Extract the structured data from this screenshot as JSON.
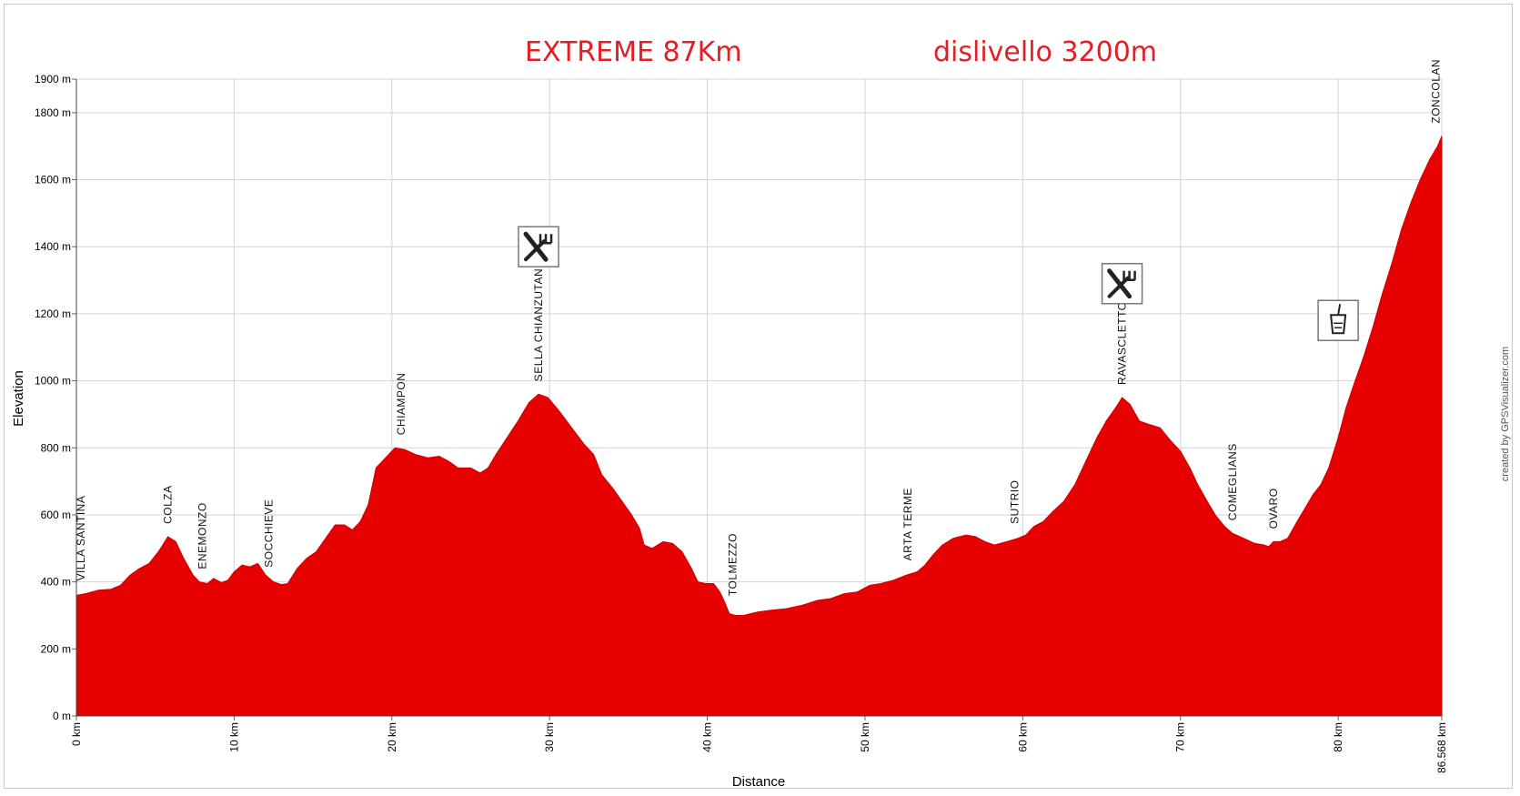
{
  "header": {
    "title_left": "EXTREME 87Km",
    "title_right": "dislivello 3200m"
  },
  "chart_data": {
    "type": "area",
    "title": "EXTREME 87Km",
    "subtitle": "dislivello 3200m",
    "xlabel": "Distance",
    "ylabel": "Elevation",
    "credit": "created by GPSVisualizer.com",
    "fill_color": "#e60000",
    "grid": true,
    "xlim": [
      0,
      86.568
    ],
    "ylim": [
      0,
      1900
    ],
    "x_ticks": [
      {
        "value": 0,
        "label": "0 km"
      },
      {
        "value": 10,
        "label": "10 km"
      },
      {
        "value": 20,
        "label": "20 km"
      },
      {
        "value": 30,
        "label": "30 km"
      },
      {
        "value": 40,
        "label": "40 km"
      },
      {
        "value": 50,
        "label": "50 km"
      },
      {
        "value": 60,
        "label": "60 km"
      },
      {
        "value": 70,
        "label": "70 km"
      },
      {
        "value": 80,
        "label": "80 km"
      },
      {
        "value": 86.568,
        "label": "86.568 km"
      }
    ],
    "y_ticks": [
      {
        "value": 0,
        "label": "0 m"
      },
      {
        "value": 200,
        "label": "200 m"
      },
      {
        "value": 400,
        "label": "400 m"
      },
      {
        "value": 600,
        "label": "600 m"
      },
      {
        "value": 800,
        "label": "800 m"
      },
      {
        "value": 1000,
        "label": "1000 m"
      },
      {
        "value": 1200,
        "label": "1200 m"
      },
      {
        "value": 1400,
        "label": "1400 m"
      },
      {
        "value": 1600,
        "label": "1600 m"
      },
      {
        "value": 1800,
        "label": "1800 m"
      },
      {
        "value": 1900,
        "label": "1900 m"
      }
    ],
    "points": [
      [
        0,
        360
      ],
      [
        0.6,
        365
      ],
      [
        1.4,
        375
      ],
      [
        2.2,
        378
      ],
      [
        2.8,
        390
      ],
      [
        3.4,
        420
      ],
      [
        4.0,
        440
      ],
      [
        4.6,
        455
      ],
      [
        5.2,
        490
      ],
      [
        5.8,
        535
      ],
      [
        6.3,
        520
      ],
      [
        6.8,
        470
      ],
      [
        7.4,
        420
      ],
      [
        7.8,
        400
      ],
      [
        8.3,
        395
      ],
      [
        8.7,
        410
      ],
      [
        9.2,
        398
      ],
      [
        9.6,
        405
      ],
      [
        10.0,
        430
      ],
      [
        10.5,
        450
      ],
      [
        11.0,
        445
      ],
      [
        11.5,
        455
      ],
      [
        12.0,
        420
      ],
      [
        12.5,
        400
      ],
      [
        13.0,
        392
      ],
      [
        13.4,
        395
      ],
      [
        14.0,
        440
      ],
      [
        14.6,
        470
      ],
      [
        15.2,
        490
      ],
      [
        15.8,
        530
      ],
      [
        16.4,
        570
      ],
      [
        17.0,
        570
      ],
      [
        17.5,
        555
      ],
      [
        18.0,
        580
      ],
      [
        18.5,
        630
      ],
      [
        19.0,
        740
      ],
      [
        19.6,
        770
      ],
      [
        20.2,
        800
      ],
      [
        20.8,
        795
      ],
      [
        21.5,
        780
      ],
      [
        22.3,
        770
      ],
      [
        23.0,
        775
      ],
      [
        23.6,
        760
      ],
      [
        24.2,
        740
      ],
      [
        25.0,
        740
      ],
      [
        25.6,
        725
      ],
      [
        26.1,
        740
      ],
      [
        26.6,
        780
      ],
      [
        27.3,
        830
      ],
      [
        28.0,
        880
      ],
      [
        28.7,
        935
      ],
      [
        29.3,
        960
      ],
      [
        29.9,
        950
      ],
      [
        30.6,
        910
      ],
      [
        31.4,
        860
      ],
      [
        32.2,
        810
      ],
      [
        32.8,
        780
      ],
      [
        33.3,
        720
      ],
      [
        34.0,
        680
      ],
      [
        34.6,
        640
      ],
      [
        35.2,
        600
      ],
      [
        35.7,
        560
      ],
      [
        36.0,
        510
      ],
      [
        36.5,
        500
      ],
      [
        37.2,
        520
      ],
      [
        37.8,
        515
      ],
      [
        38.4,
        490
      ],
      [
        39.0,
        440
      ],
      [
        39.4,
        400
      ],
      [
        39.9,
        395
      ],
      [
        40.4,
        395
      ],
      [
        40.8,
        370
      ],
      [
        41.1,
        340
      ],
      [
        41.4,
        305
      ],
      [
        41.8,
        300
      ],
      [
        42.3,
        300
      ],
      [
        43.2,
        310
      ],
      [
        44.0,
        315
      ],
      [
        45.0,
        320
      ],
      [
        46.0,
        330
      ],
      [
        47.0,
        345
      ],
      [
        47.8,
        350
      ],
      [
        48.7,
        365
      ],
      [
        49.5,
        370
      ],
      [
        50.3,
        390
      ],
      [
        51.0,
        395
      ],
      [
        51.8,
        405
      ],
      [
        52.6,
        420
      ],
      [
        53.3,
        430
      ],
      [
        53.8,
        450
      ],
      [
        54.3,
        480
      ],
      [
        54.9,
        510
      ],
      [
        55.6,
        530
      ],
      [
        56.4,
        540
      ],
      [
        57.0,
        535
      ],
      [
        57.6,
        520
      ],
      [
        58.2,
        510
      ],
      [
        59.0,
        520
      ],
      [
        59.7,
        530
      ],
      [
        60.2,
        540
      ],
      [
        60.7,
        565
      ],
      [
        61.3,
        580
      ],
      [
        61.9,
        610
      ],
      [
        62.6,
        640
      ],
      [
        63.3,
        690
      ],
      [
        64.0,
        760
      ],
      [
        64.7,
        830
      ],
      [
        65.3,
        880
      ],
      [
        65.9,
        920
      ],
      [
        66.3,
        950
      ],
      [
        66.8,
        930
      ],
      [
        67.4,
        880
      ],
      [
        68.0,
        870
      ],
      [
        68.7,
        860
      ],
      [
        69.4,
        820
      ],
      [
        70.0,
        790
      ],
      [
        70.6,
        740
      ],
      [
        71.1,
        690
      ],
      [
        71.7,
        640
      ],
      [
        72.2,
        600
      ],
      [
        72.8,
        565
      ],
      [
        73.3,
        545
      ],
      [
        74.0,
        530
      ],
      [
        74.7,
        515
      ],
      [
        75.3,
        510
      ],
      [
        75.6,
        505
      ],
      [
        75.9,
        520
      ],
      [
        76.3,
        520
      ],
      [
        76.8,
        530
      ],
      [
        77.4,
        580
      ],
      [
        77.9,
        620
      ],
      [
        78.4,
        660
      ],
      [
        78.9,
        690
      ],
      [
        79.4,
        740
      ],
      [
        80.0,
        830
      ],
      [
        80.5,
        920
      ],
      [
        81.0,
        990
      ],
      [
        81.6,
        1070
      ],
      [
        82.2,
        1160
      ],
      [
        82.8,
        1260
      ],
      [
        83.4,
        1350
      ],
      [
        84.0,
        1450
      ],
      [
        84.6,
        1530
      ],
      [
        85.2,
        1600
      ],
      [
        85.8,
        1660
      ],
      [
        86.3,
        1700
      ],
      [
        86.568,
        1730
      ]
    ],
    "waypoints": [
      {
        "label": "VILLA SANTINA",
        "x": 0.3,
        "y": 365
      },
      {
        "label": "COLZA",
        "x": 5.8,
        "y": 535
      },
      {
        "label": "ENEMONZO",
        "x": 8.0,
        "y": 400
      },
      {
        "label": "SOCCHIEVE",
        "x": 12.2,
        "y": 405
      },
      {
        "label": "CHIAMPON",
        "x": 20.6,
        "y": 800
      },
      {
        "label": "SELLA CHIANZUTAN",
        "x": 29.3,
        "y": 960
      },
      {
        "label": "TOLMEZZO",
        "x": 41.6,
        "y": 320
      },
      {
        "label": "ARTA TERME",
        "x": 52.7,
        "y": 425
      },
      {
        "label": "SUTRIO",
        "x": 59.5,
        "y": 535
      },
      {
        "label": "RAVASCLETTO",
        "x": 66.3,
        "y": 950
      },
      {
        "label": "COMEGLIANS",
        "x": 73.3,
        "y": 545
      },
      {
        "label": "OVARO",
        "x": 75.9,
        "y": 520
      },
      {
        "label": "ZONCOLAN",
        "x": 86.2,
        "y": 1730
      }
    ],
    "markers": [
      {
        "icon": "fork-knife-icon",
        "x": 29.3,
        "y": 1400
      },
      {
        "icon": "fork-knife-icon",
        "x": 66.3,
        "y": 1290
      },
      {
        "icon": "drink-glass-icon",
        "x": 80.0,
        "y": 1180
      }
    ]
  }
}
